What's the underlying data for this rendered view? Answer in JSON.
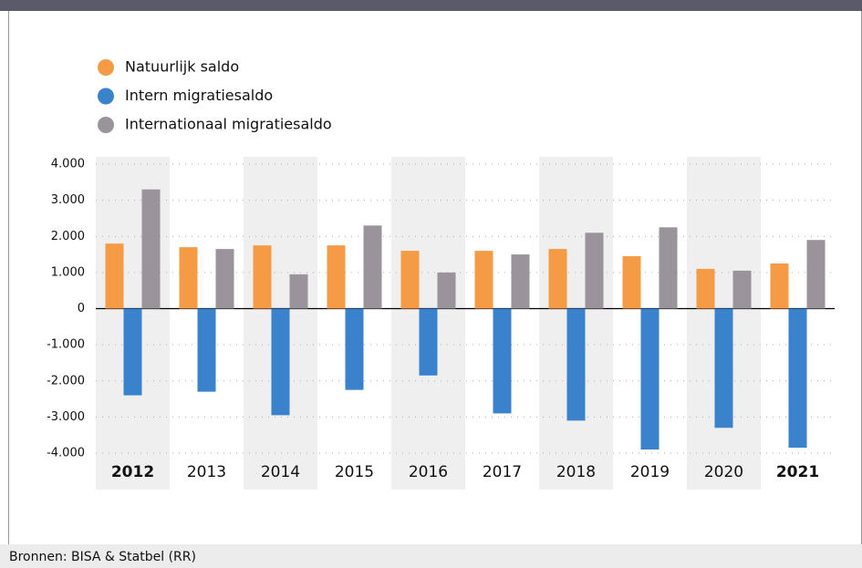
{
  "chart_data": {
    "type": "bar",
    "categories": [
      "2012",
      "2013",
      "2014",
      "2015",
      "2016",
      "2017",
      "2018",
      "2019",
      "2020",
      "2021"
    ],
    "series": [
      {
        "name": "Natuurlijk saldo",
        "color": "#f59a45",
        "values": [
          1800,
          1700,
          1750,
          1750,
          1600,
          1600,
          1650,
          1450,
          1100,
          1250
        ]
      },
      {
        "name": "Intern migratiesaldo",
        "color": "#3a82cc",
        "values": [
          -2400,
          -2300,
          -2950,
          -2250,
          -1850,
          -2900,
          -3100,
          -3900,
          -3300,
          -3850
        ]
      },
      {
        "name": "Internationaal migratiesaldo",
        "color": "#9a939c",
        "values": [
          3300,
          1650,
          950,
          2300,
          1000,
          1500,
          2100,
          2250,
          1050,
          1900
        ]
      }
    ],
    "ylim": [
      -4000,
      4000
    ],
    "yticks": [
      {
        "value": -4000,
        "label": "-4.000"
      },
      {
        "value": -3000,
        "label": "-3.000"
      },
      {
        "value": -2000,
        "label": "-2.000"
      },
      {
        "value": -1000,
        "label": "-1.000"
      },
      0,
      {
        "value": 1000,
        "label": "1.000"
      },
      {
        "value": 2000,
        "label": "2.000"
      },
      {
        "value": 3000,
        "label": "3.000"
      },
      {
        "value": 4000,
        "label": "4.000"
      }
    ],
    "grid": true,
    "bold_category_indices": [
      0,
      9
    ],
    "source": "Bronnen: BISA & Statbel (RR)"
  }
}
